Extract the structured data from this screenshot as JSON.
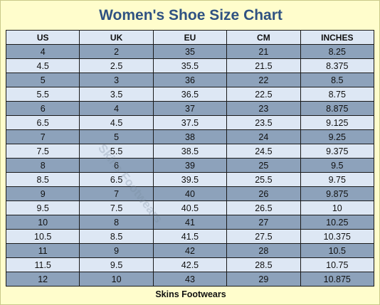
{
  "title": "Women's Shoe Size Chart",
  "headers": [
    "US",
    "UK",
    "EU",
    "CM",
    "INCHES"
  ],
  "rows": [
    [
      "4",
      "2",
      "35",
      "21",
      "8.25"
    ],
    [
      "4.5",
      "2.5",
      "35.5",
      "21.5",
      "8.375"
    ],
    [
      "5",
      "3",
      "36",
      "22",
      "8.5"
    ],
    [
      "5.5",
      "3.5",
      "36.5",
      "22.5",
      "8.75"
    ],
    [
      "6",
      "4",
      "37",
      "23",
      "8.875"
    ],
    [
      "6.5",
      "4.5",
      "37.5",
      "23.5",
      "9.125"
    ],
    [
      "7",
      "5",
      "38",
      "24",
      "9.25"
    ],
    [
      "7.5",
      "5.5",
      "38.5",
      "24.5",
      "9.375"
    ],
    [
      "8",
      "6",
      "39",
      "25",
      "9.5"
    ],
    [
      "8.5",
      "6.5",
      "39.5",
      "25.5",
      "9.75"
    ],
    [
      "9",
      "7",
      "40",
      "26",
      "9.875"
    ],
    [
      "9.5",
      "7.5",
      "40.5",
      "26.5",
      "10"
    ],
    [
      "10",
      "8",
      "41",
      "27",
      "10.25"
    ],
    [
      "10.5",
      "8.5",
      "41.5",
      "27.5",
      "10.375"
    ],
    [
      "11",
      "9",
      "42",
      "28",
      "10.5"
    ],
    [
      "11.5",
      "9.5",
      "42.5",
      "28.5",
      "10.75"
    ],
    [
      "12",
      "10",
      "43",
      "29",
      "10.875"
    ]
  ],
  "watermark": "Skins Footwears",
  "footer": "Skins Footwears",
  "colors": {
    "background": "#fffdcc",
    "title": "#2f5282",
    "header_row": "#dde7f4",
    "row_dark": "#8da2bb",
    "row_light": "#dde7f4"
  }
}
